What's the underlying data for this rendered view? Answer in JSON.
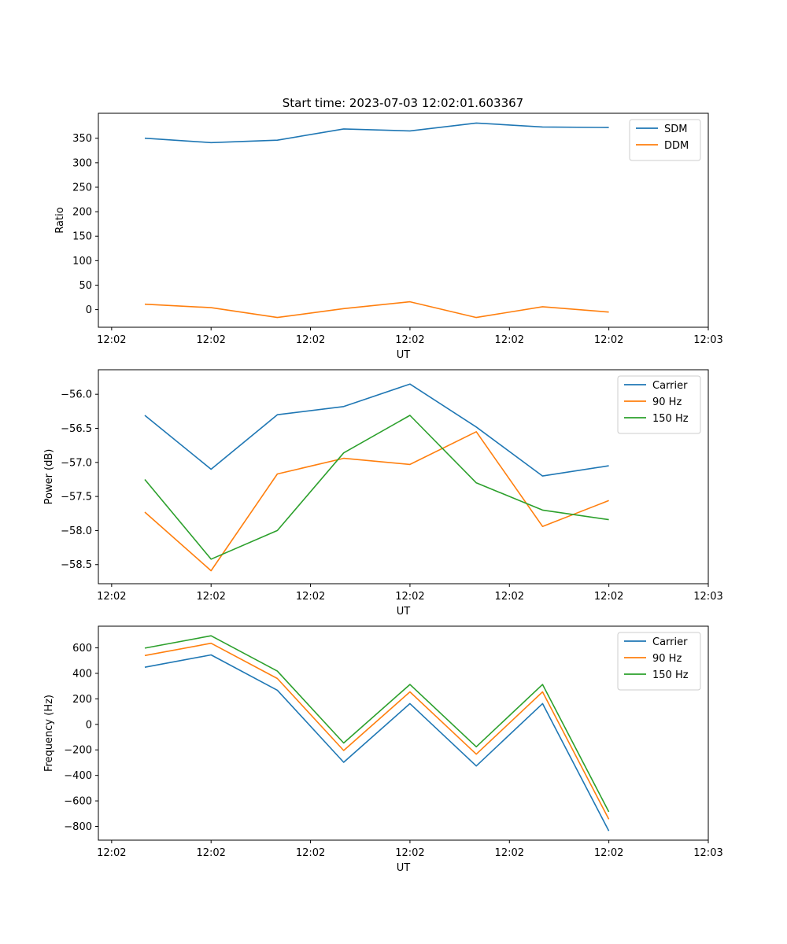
{
  "title": "Start time: 2023-07-03 12:02:01.603367",
  "colors": {
    "blue": "#1f77b4",
    "orange": "#ff7f0e",
    "green": "#2ca02c"
  },
  "chart_data": [
    {
      "type": "line",
      "title": "Start time: 2023-07-03 12:02:01.603367",
      "xlabel": "UT",
      "ylabel": "Ratio",
      "x": [
        1,
        2,
        3,
        4,
        5,
        6,
        7,
        8
      ],
      "xlim": [
        0.3,
        9.5
      ],
      "xticks": [
        0.5,
        2,
        3.5,
        5,
        6.5,
        8,
        9.5
      ],
      "xtick_labels": [
        "12:02",
        "12:02",
        "12:02",
        "12:02",
        "12:02",
        "12:02",
        "12:03"
      ],
      "ylim": [
        -36,
        401
      ],
      "yticks": [
        0,
        50,
        100,
        150,
        200,
        250,
        300,
        350
      ],
      "ytick_labels": [
        "0",
        "50",
        "100",
        "150",
        "200",
        "250",
        "300",
        "350"
      ],
      "legend": "top-right",
      "series": [
        {
          "name": "SDM",
          "color": "#1f77b4",
          "values": [
            350,
            341,
            346,
            369,
            365,
            381,
            373,
            372
          ]
        },
        {
          "name": "DDM",
          "color": "#ff7f0e",
          "values": [
            11,
            4,
            -16,
            2,
            16,
            -16,
            6,
            -5
          ]
        }
      ]
    },
    {
      "type": "line",
      "xlabel": "UT",
      "ylabel": "Power (dB)",
      "x": [
        1,
        2,
        3,
        4,
        5,
        6,
        7,
        8
      ],
      "xlim": [
        0.3,
        9.5
      ],
      "xticks": [
        0.5,
        2,
        3.5,
        5,
        6.5,
        8,
        9.5
      ],
      "xtick_labels": [
        "12:02",
        "12:02",
        "12:02",
        "12:02",
        "12:02",
        "12:02",
        "12:03"
      ],
      "ylim": [
        -58.78,
        -55.64
      ],
      "yticks": [
        -56.0,
        -56.5,
        -57.0,
        -57.5,
        -58.0,
        -58.5
      ],
      "ytick_labels": [
        "−56.0",
        "−56.5",
        "−57.0",
        "−57.5",
        "−58.0",
        "−58.5"
      ],
      "legend": "top-right",
      "series": [
        {
          "name": "Carrier",
          "color": "#1f77b4",
          "values": [
            -56.31,
            -57.1,
            -56.3,
            -56.18,
            -55.85,
            -56.48,
            -57.2,
            -57.05
          ]
        },
        {
          "name": "90 Hz",
          "color": "#ff7f0e",
          "values": [
            -57.73,
            -58.59,
            -57.17,
            -56.94,
            -57.03,
            -56.55,
            -57.94,
            -57.56
          ]
        },
        {
          "name": "150 Hz",
          "color": "#2ca02c",
          "values": [
            -57.25,
            -58.42,
            -58.0,
            -56.86,
            -56.31,
            -57.3,
            -57.7,
            -57.84
          ]
        }
      ]
    },
    {
      "type": "line",
      "xlabel": "UT",
      "ylabel": "Frequency (Hz)",
      "x": [
        1,
        2,
        3,
        4,
        5,
        6,
        7,
        8
      ],
      "xlim": [
        0.3,
        9.5
      ],
      "xticks": [
        0.5,
        2,
        3.5,
        5,
        6.5,
        8,
        9.5
      ],
      "xtick_labels": [
        "12:02",
        "12:02",
        "12:02",
        "12:02",
        "12:02",
        "12:02",
        "12:03"
      ],
      "ylim": [
        -908,
        770
      ],
      "yticks": [
        600,
        400,
        200,
        0,
        -200,
        -400,
        -600,
        -800
      ],
      "ytick_labels": [
        "600",
        "400",
        "200",
        "0",
        "−200",
        "−400",
        "−600",
        "−800"
      ],
      "legend": "top-right",
      "series": [
        {
          "name": "Carrier",
          "color": "#1f77b4",
          "values": [
            448,
            545,
            268,
            -297,
            163,
            -326,
            163,
            -836
          ]
        },
        {
          "name": "90 Hz",
          "color": "#ff7f0e",
          "values": [
            540,
            636,
            360,
            -205,
            255,
            -234,
            255,
            -744
          ]
        },
        {
          "name": "150 Hz",
          "color": "#2ca02c",
          "values": [
            598,
            695,
            418,
            -146,
            313,
            -176,
            313,
            -686
          ]
        }
      ]
    }
  ]
}
